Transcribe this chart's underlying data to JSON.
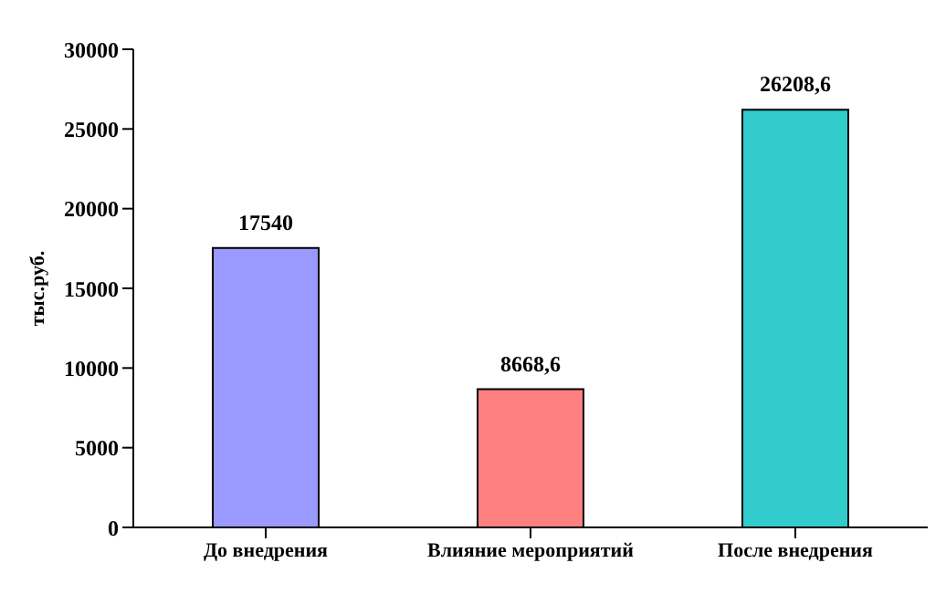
{
  "chart_data": {
    "type": "bar",
    "ylabel": "тыс.руб.",
    "categories": [
      "До внедрения",
      "Влияние мероприятий",
      "После внедрения"
    ],
    "values": [
      17540,
      8668.6,
      26208.6
    ],
    "colors": [
      "#9999ff",
      "#ff8080",
      "#33cccc"
    ],
    "value_labels": [
      "17540",
      "8668,6",
      "26208,6"
    ],
    "ylim": [
      0,
      30000
    ],
    "yticks": [
      0,
      5000,
      10000,
      15000,
      20000,
      25000,
      30000
    ],
    "grid": false
  }
}
